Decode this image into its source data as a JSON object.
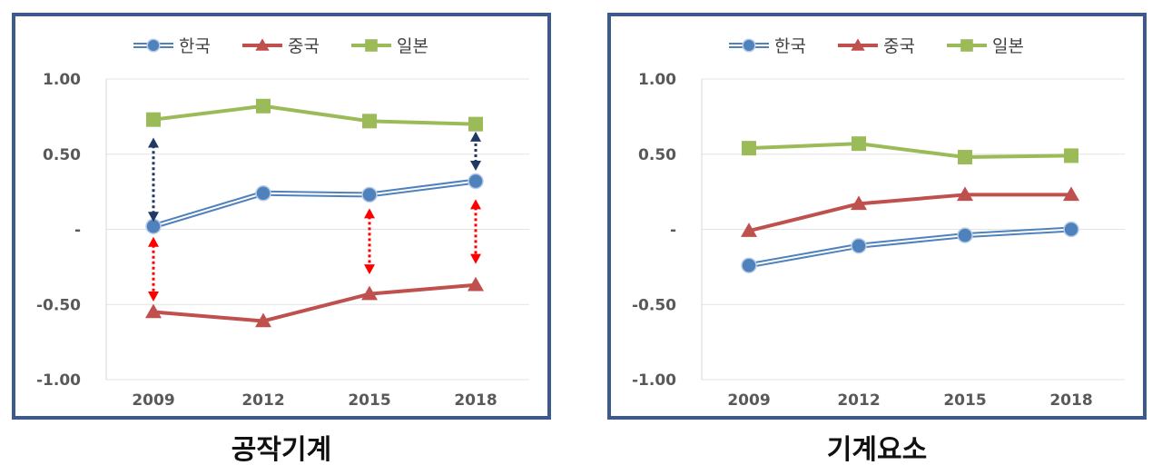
{
  "chart_data": [
    {
      "type": "line",
      "title": "공작기계",
      "categories": [
        "2009",
        "2012",
        "2015",
        "2018"
      ],
      "y_tick_labels": [
        "1.00",
        "0.50",
        "-",
        "-0.50",
        "-1.00"
      ],
      "ylim": [
        -1.0,
        1.0
      ],
      "grid": "horizontal",
      "legend_position": "top",
      "series": [
        {
          "name": "한국",
          "values": [
            0.02,
            0.24,
            0.23,
            0.32
          ],
          "color": "#4f81bd",
          "marker": "circle",
          "line_style": "double"
        },
        {
          "name": "중국",
          "values": [
            -0.55,
            -0.61,
            -0.43,
            -0.37
          ],
          "color": "#c0504d",
          "marker": "triangle",
          "line_style": "solid"
        },
        {
          "name": "일본",
          "values": [
            0.73,
            0.82,
            0.72,
            0.7
          ],
          "color": "#9bbb59",
          "marker": "square",
          "line_style": "solid"
        }
      ],
      "annotations": [
        {
          "kind": "double-arrow",
          "color": "#1f3864",
          "x": "2009",
          "y_from": 0.05,
          "y_to": 0.61
        },
        {
          "kind": "double-arrow",
          "color": "#1f3864",
          "x": "2018",
          "y_from": 0.39,
          "y_to": 0.65
        },
        {
          "kind": "double-arrow",
          "color": "#ff0000",
          "x": "2009",
          "y_from": -0.05,
          "y_to": -0.48
        },
        {
          "kind": "double-arrow",
          "color": "#ff0000",
          "x": "2015",
          "y_from": 0.14,
          "y_to": -0.3
        },
        {
          "kind": "double-arrow",
          "color": "#ff0000",
          "x": "2018",
          "y_from": 0.2,
          "y_to": -0.23
        }
      ]
    },
    {
      "type": "line",
      "title": "기계요소",
      "categories": [
        "2009",
        "2012",
        "2015",
        "2018"
      ],
      "y_tick_labels": [
        "1.00",
        "0.50",
        "-",
        "-0.50",
        "-1.00"
      ],
      "ylim": [
        -1.0,
        1.0
      ],
      "grid": "horizontal",
      "legend_position": "top",
      "series": [
        {
          "name": "한국",
          "values": [
            -0.24,
            -0.11,
            -0.04,
            0.0
          ],
          "color": "#4f81bd",
          "marker": "circle",
          "line_style": "double"
        },
        {
          "name": "중국",
          "values": [
            -0.01,
            0.17,
            0.23,
            0.23
          ],
          "color": "#c0504d",
          "marker": "triangle",
          "line_style": "solid"
        },
        {
          "name": "일본",
          "values": [
            0.54,
            0.57,
            0.48,
            0.49
          ],
          "color": "#9bbb59",
          "marker": "square",
          "line_style": "solid"
        }
      ],
      "annotations": []
    }
  ]
}
